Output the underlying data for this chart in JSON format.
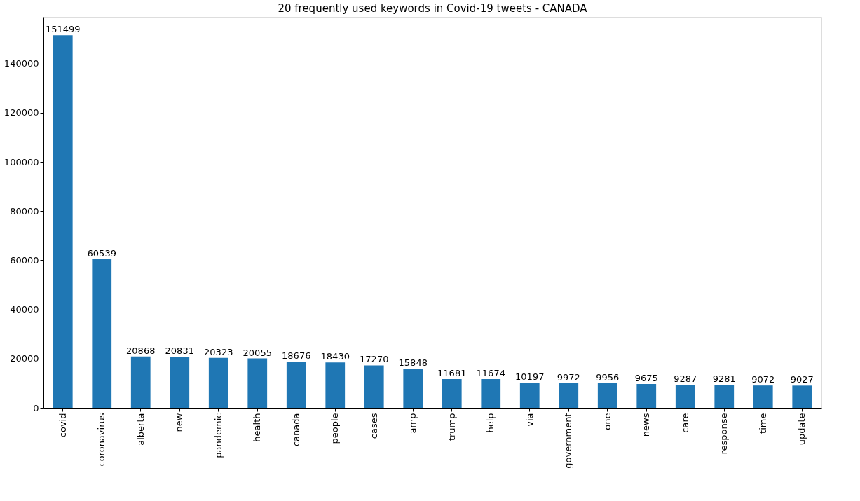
{
  "chart_data": {
    "type": "bar",
    "title": "20 frequently used keywords in Covid-19 tweets - CANADA",
    "categories": [
      "covid",
      "coronavirus",
      "alberta",
      "new",
      "pandemic",
      "health",
      "canada",
      "people",
      "cases",
      "amp",
      "trump",
      "help",
      "via",
      "government",
      "one",
      "news",
      "care",
      "response",
      "time",
      "update"
    ],
    "values": [
      151499,
      60539,
      20868,
      20831,
      20323,
      20055,
      18676,
      18430,
      17270,
      15848,
      11681,
      11674,
      10197,
      9972,
      9956,
      9675,
      9287,
      9281,
      9072,
      9027
    ],
    "color": "#1f77b4",
    "ylim": [
      0,
      159000
    ],
    "yticks": [
      0,
      20000,
      40000,
      60000,
      80000,
      100000,
      120000,
      140000
    ],
    "data_labels": true
  }
}
